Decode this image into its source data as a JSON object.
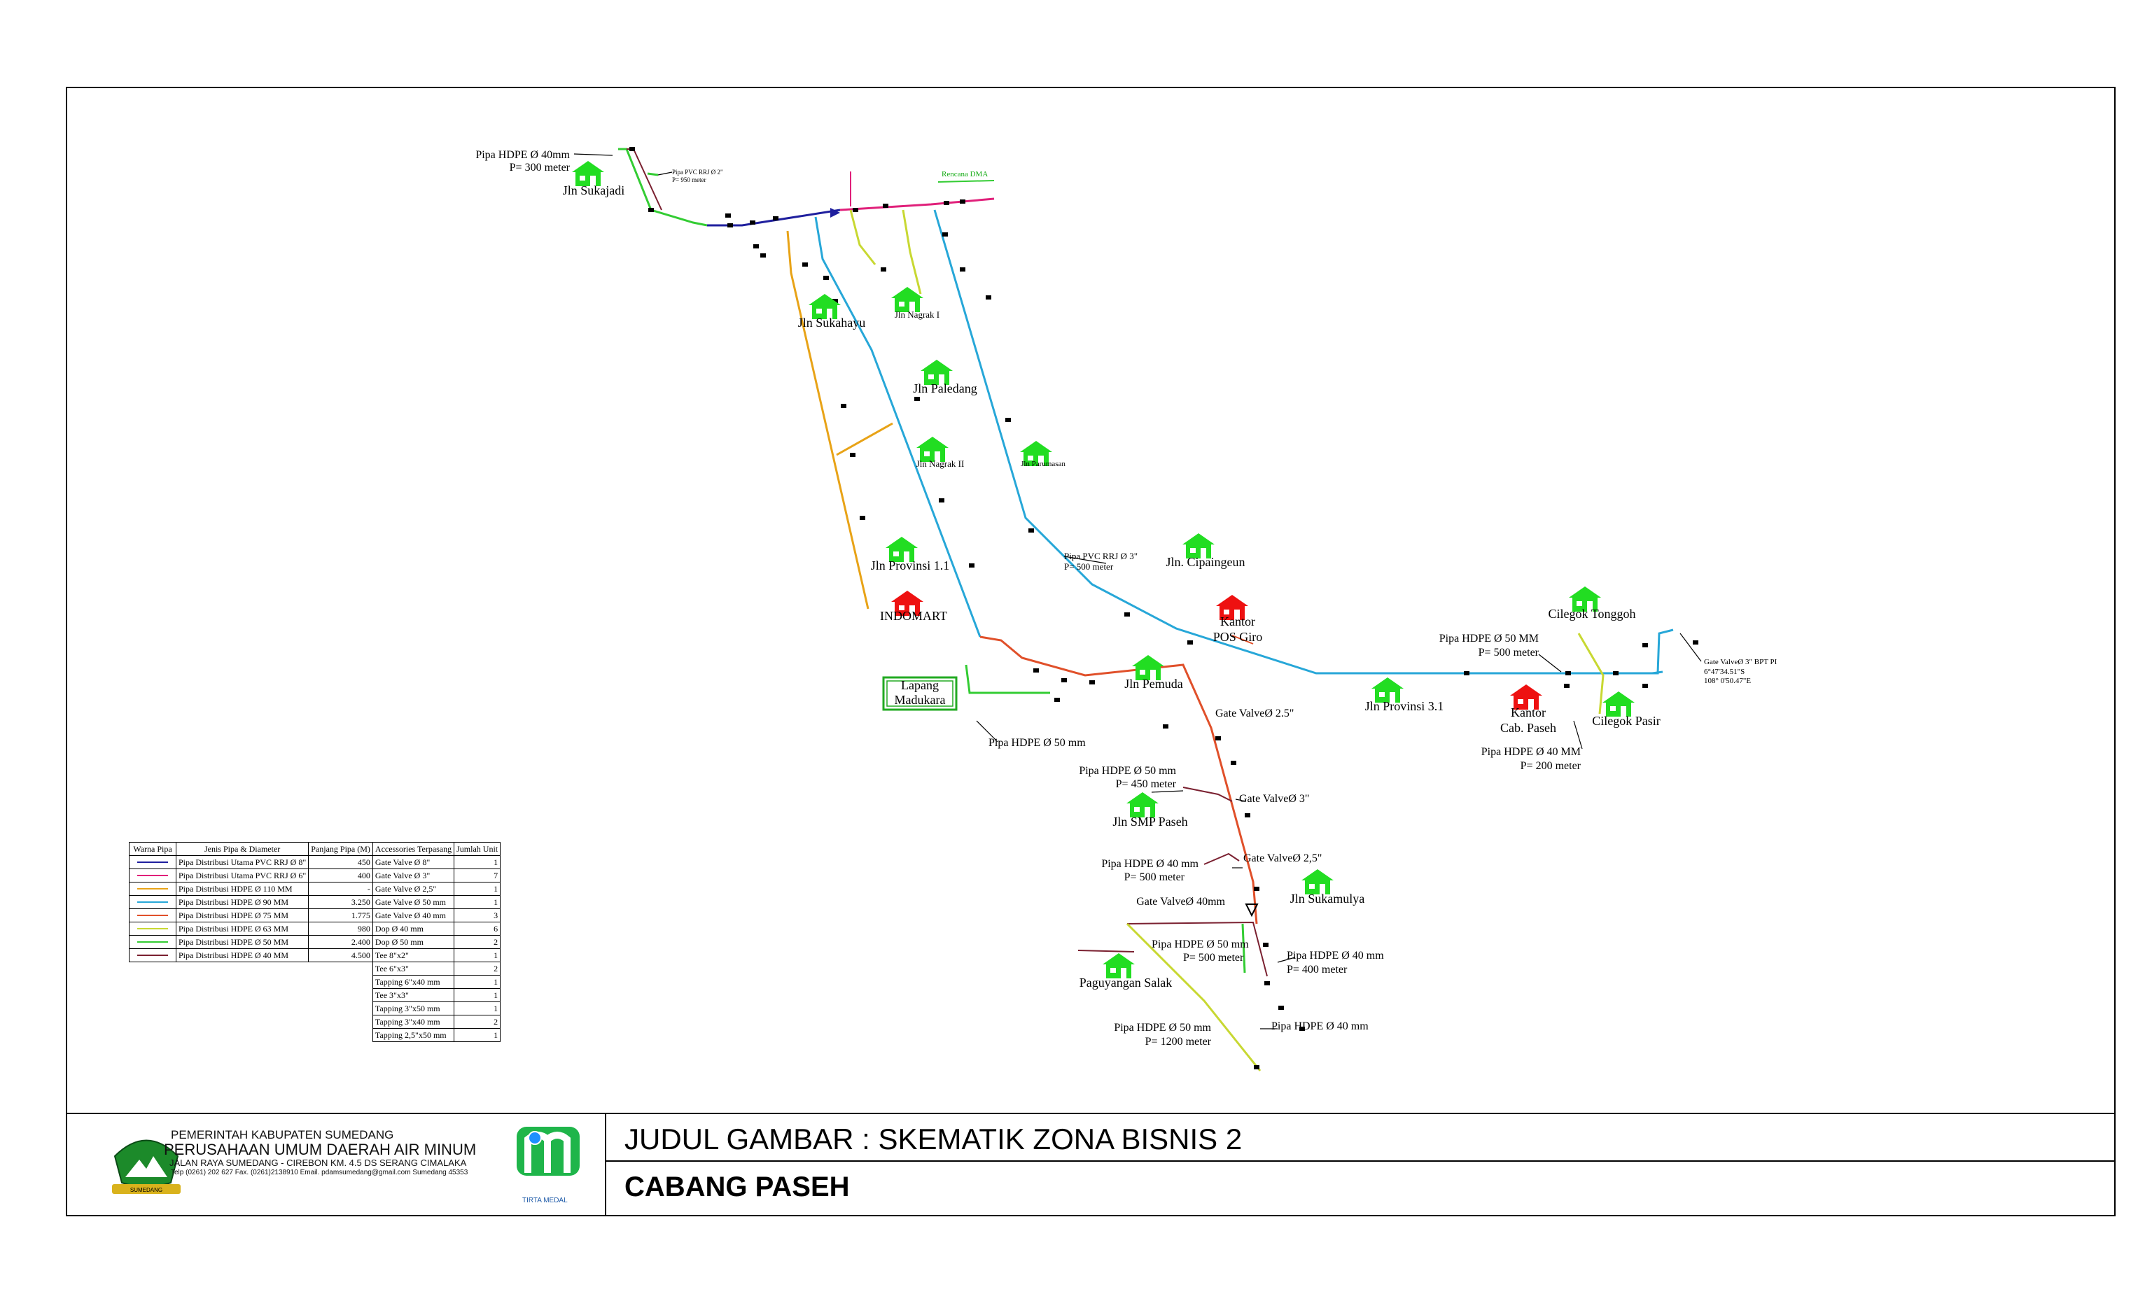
{
  "title_block": {
    "judul": "JUDUL GAMBAR : SKEMATIK ZONA BISNIS 2",
    "cabang": "CABANG PASEH",
    "org_line1": "PEMERINTAH KABUPATEN SUMEDANG",
    "org_line2": "PERUSAHAAN UMUM DAERAH AIR MINUM",
    "org_line3": "JALAN RAYA SUMEDANG - CIREBON KM. 4.5 DS SERANG CIMALAKA",
    "org_line4": "Telp (0261) 202 627 Fax. (0261)2138910 Email. pdamsumedang@gmail.com Sumedang 45353",
    "logo_right_caption": "TIRTA MEDAL",
    "logo_left_ribbon": "SUMEDANG"
  },
  "colors": {
    "pvc8": "#1f1f9e",
    "pvc6": "#e0207a",
    "hdpe110": "#e8a317",
    "hdpe90": "#27a7d8",
    "hdpe75": "#e0502a",
    "hdpe63": "#c8d832",
    "hdpe50": "#33cc33",
    "hdpe40": "#7a2030",
    "house_green": "#22dd22",
    "house_red": "#ee1111"
  },
  "legend": {
    "headers": [
      "Warna Pipa",
      "Jenis Pipa & Diameter",
      "Panjang Pipa (M)",
      "Accessories Terpasang",
      "Jumlah Unit"
    ],
    "rows": [
      {
        "color": "#1f1f9e",
        "jenis": "Pipa Distribusi Utama PVC RRJ Ø 8\"",
        "panjang": "450",
        "acc": "Gate Valve Ø 8\"",
        "jumlah": "1"
      },
      {
        "color": "#e0207a",
        "jenis": "Pipa Distribusi Utama PVC RRJ Ø 6\"",
        "panjang": "400",
        "acc": "Gate Valve Ø 3\"",
        "jumlah": "7"
      },
      {
        "color": "#e8a317",
        "jenis": "Pipa Distribusi HDPE Ø 110 MM",
        "panjang": "-",
        "acc": "Gate Valve Ø 2,5\"",
        "jumlah": "1"
      },
      {
        "color": "#27a7d8",
        "jenis": "Pipa Distribusi HDPE Ø 90 MM",
        "panjang": "3.250",
        "acc": "Gate Valve Ø 50 mm",
        "jumlah": "1"
      },
      {
        "color": "#e0502a",
        "jenis": "Pipa Distribusi HDPE Ø 75 MM",
        "panjang": "1.775",
        "acc": "Gate Valve Ø 40 mm",
        "jumlah": "3"
      },
      {
        "color": "#c8d832",
        "jenis": "Pipa Distribusi HDPE Ø 63 MM",
        "panjang": "980",
        "acc": "Dop Ø 40 mm",
        "jumlah": "6"
      },
      {
        "color": "#33cc33",
        "jenis": "Pipa Distribusi HDPE Ø 50 MM",
        "panjang": "2.400",
        "acc": "Dop Ø 50 mm",
        "jumlah": "2"
      },
      {
        "color": "#7a2030",
        "jenis": "Pipa Distribusi HDPE Ø 40 MM",
        "panjang": "4.500",
        "acc": "Tee 8\"x2\"",
        "jumlah": "1"
      }
    ],
    "extra_rows": [
      {
        "acc": "Tee 6\"x3\"",
        "jumlah": "2"
      },
      {
        "acc": "Tapping 6\"x40 mm",
        "jumlah": "1"
      },
      {
        "acc": "Tee 3\"x3\"",
        "jumlah": "1"
      },
      {
        "acc": "Tapping 3\"x50 mm",
        "jumlah": "1"
      },
      {
        "acc": "Tapping 3\"x40 mm",
        "jumlah": "2"
      },
      {
        "acc": "Tapping 2,5\"x50 mm",
        "jumlah": "1"
      }
    ]
  },
  "places": {
    "sukajadi": "Jln Sukajadi",
    "sukahayu": "Jln Sukahayu",
    "nagrak1": "Jln Nagrak I",
    "paledang": "Jln Paledang",
    "nagrak2": "Jln Nagrak II",
    "parumasan": "Jln Parumasan",
    "provinsi11": "Jln Provinsi 1.1",
    "cipaingeun": "Jln. Cipaingeun",
    "indomart": "INDOMART",
    "kantor_pos_1": "Kantor",
    "kantor_pos_2": "POS Giro",
    "pemuda": "Jln Pemuda",
    "provinsi31": "Jln Provinsi 3.1",
    "cilegok_tonggoh": "Cilegok Tonggoh",
    "cilegok_pasir": "Cilegok Pasir",
    "kantor_cab_1": "Kantor",
    "kantor_cab_2": "Cab. Paseh",
    "smp": "Jln SMP Paseh",
    "sukamulya": "Jln Sukamulya",
    "paguyangan": "Paguyangan Salak",
    "lapang_1": "Lapang",
    "lapang_2": "Madukara"
  },
  "notes": {
    "sukajadi_pipe_1": "Pipa HDPE Ø 40mm",
    "sukajadi_pipe_2": "P= 300 meter",
    "pvc2_1": "Pipa PVC RRJ Ø 2\"",
    "pvc2_2": "P= 950 meter",
    "rencana": "Rencana DMA",
    "pvc3_1": "Pipa PVC RRJ Ø 3\"",
    "pvc3_2": "P= 500 meter",
    "cilegok_50_1": "Pipa HDPE Ø 50 MM",
    "cilegok_50_2": "P= 500 meter",
    "cilegok_40_1": "Pipa HDPE Ø 40 MM",
    "cilegok_40_2": "P= 200 meter",
    "gate_bpt_1": "Gate ValveØ 3\" BPT PI",
    "gate_bpt_2": "6°47'34.51\"S",
    "gate_bpt_3": "108° 0'50.47\"E",
    "lapang_pipe": "Pipa HDPE Ø 50 mm",
    "gv25_a": "Gate ValveØ 2.5\"",
    "smp_pipe_1": "Pipa HDPE Ø 50 mm",
    "smp_pipe_2": "P= 450 meter",
    "gv3": "Gate ValveØ 3\"",
    "p40_500_1": "Pipa HDPE Ø 40 mm",
    "p40_500_2": "P= 500 meter",
    "gv25_b": "Gate ValveØ 2,5\"",
    "gv40": "Gate ValveØ 40mm",
    "p50_500_1": "Pipa HDPE Ø 50 mm",
    "p50_500_2": "P= 500 meter",
    "p40_400_1": "Pipa HDPE Ø 40 mm",
    "p40_400_2": "P= 400 meter",
    "p50_1200_1": "Pipa HDPE Ø 50 mm",
    "p50_1200_2": "P= 1200 meter",
    "p40_end": "Pipa HDPE Ø 40 mm"
  }
}
